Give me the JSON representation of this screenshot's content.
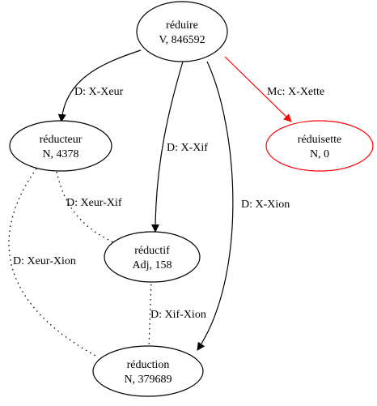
{
  "graph": {
    "nodes": [
      {
        "id": "reduire",
        "name": "réduire",
        "info": "V, 846592",
        "color": "#000000"
      },
      {
        "id": "reducteur",
        "name": "réducteur",
        "info": "N, 4378",
        "color": "#000000"
      },
      {
        "id": "reduisette",
        "name": "réduisette",
        "info": "N, 0",
        "color": "#ff0000"
      },
      {
        "id": "reductif",
        "name": "réductif",
        "info": "Adj, 158",
        "color": "#000000"
      },
      {
        "id": "reduction",
        "name": "réduction",
        "info": "N, 379689",
        "color": "#000000"
      }
    ],
    "edges": [
      {
        "id": "reduire-reducteur",
        "from": "réduire",
        "to": "réducteur",
        "label": "D: X-Xeur",
        "style": "solid",
        "directed": true,
        "color": "#000000"
      },
      {
        "id": "reduire-reductif",
        "from": "réduire",
        "to": "réductif",
        "label": "D: X-Xif",
        "style": "solid",
        "directed": true,
        "color": "#000000"
      },
      {
        "id": "reduire-reduction",
        "from": "réduire",
        "to": "réduction",
        "label": "D: X-Xion",
        "style": "solid",
        "directed": true,
        "color": "#000000"
      },
      {
        "id": "reduire-reduisette",
        "from": "réduire",
        "to": "réduisette",
        "label": "Mc: X-Xette",
        "style": "solid",
        "directed": true,
        "color": "#ff0000"
      },
      {
        "id": "reducteur-reductif",
        "from": "réducteur",
        "to": "réductif",
        "label": "D: Xeur-Xif",
        "style": "dotted",
        "directed": false,
        "color": "#000000"
      },
      {
        "id": "reducteur-reduction",
        "from": "réducteur",
        "to": "réduction",
        "label": "D: Xeur-Xion",
        "style": "dotted",
        "directed": false,
        "color": "#000000"
      },
      {
        "id": "reductif-reduction",
        "from": "réductif",
        "to": "réduction",
        "label": "D: Xif-Xion",
        "style": "dotted",
        "directed": false,
        "color": "#000000"
      }
    ]
  }
}
